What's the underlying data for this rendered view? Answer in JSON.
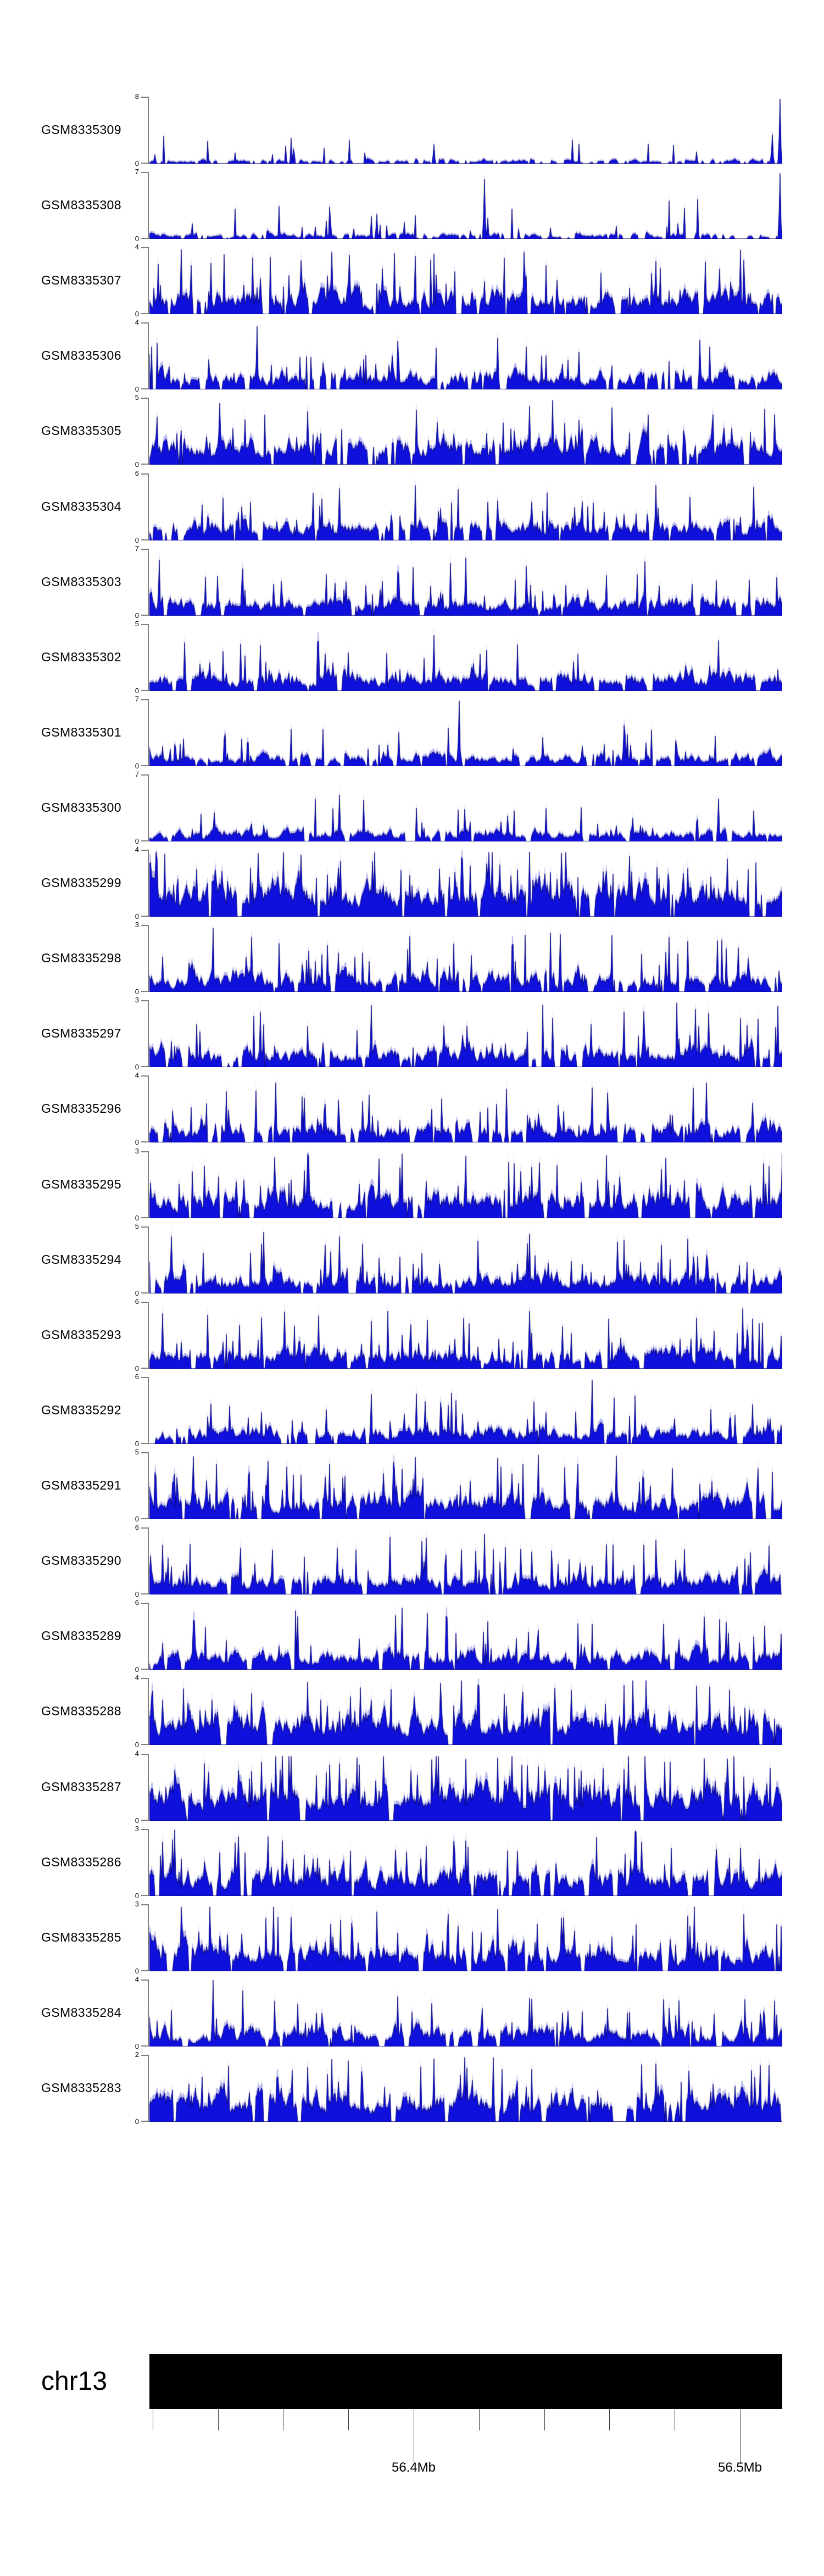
{
  "page": {
    "background": "#ffffff"
  },
  "colors": {
    "signal_fill": "#1010dc",
    "signal_stroke": "#00007d",
    "signal_halo": "rgba(125,125,222,0.55)",
    "axis_bracket": "#7f7f7f",
    "ideogram_fill": "#000000",
    "ruler_tick": "#3c3c3c",
    "text": "#000000"
  },
  "ideogram": {
    "chromosome_label": "chr13"
  },
  "chart_data": {
    "type": "area",
    "title": "",
    "description": "Genome browser style coverage signal tracks for 27 GEO samples over a region of chromosome 13",
    "grid": false,
    "legend": null,
    "x_axis": {
      "region_chromosome": "chr13",
      "region_start_mb": 56.319,
      "region_end_mb": 56.513,
      "minor_ticks_mb": [
        56.32,
        56.34,
        56.36,
        56.38,
        56.4,
        56.42,
        56.44,
        56.46,
        56.48,
        56.5
      ],
      "labeled_ticks": [
        {
          "mb": 56.4,
          "label": "56.4Mb"
        },
        {
          "mb": 56.5,
          "label": "56.5Mb"
        }
      ]
    },
    "y_axis": {
      "min_label": "0"
    },
    "tracks": [
      {
        "label": "GSM8335309",
        "ymax": 8,
        "ymin": 0,
        "seed": 101,
        "base": 0.5,
        "floor": 0.06,
        "spread": 2.0,
        "gap": 0.1,
        "needle_prob": 0.05,
        "needle": 1.3,
        "features": [
          [
            0.45,
            2.3
          ],
          [
            0.985,
            3.5
          ],
          [
            0.997,
            7.8
          ]
        ]
      },
      {
        "label": "GSM8335308",
        "ymax": 7,
        "ymin": 0,
        "seed": 102,
        "base": 0.55,
        "floor": 0.06,
        "spread": 2.0,
        "gap": 0.08,
        "needle_prob": 0.06,
        "needle": 1.4,
        "features": [
          [
            0.36,
            2.6
          ],
          [
            0.53,
            6.3
          ],
          [
            0.997,
            6.9
          ]
        ]
      },
      {
        "label": "GSM8335307",
        "ymax": 4,
        "ymin": 0,
        "seed": 103,
        "base": 1.15,
        "floor": 0.15,
        "spread": 2.2,
        "gap": 0.04,
        "needle_prob": 0.1,
        "needle": 1.1,
        "features": [
          [
            0.05,
            3.9
          ],
          [
            0.42,
            3.5
          ],
          [
            0.8,
            3.2
          ]
        ]
      },
      {
        "label": "GSM8335306",
        "ymax": 4,
        "ymin": 0,
        "seed": 104,
        "base": 0.95,
        "floor": 0.1,
        "spread": 2.2,
        "gap": 0.05,
        "needle_prob": 0.07,
        "needle": 1.0,
        "features": [
          [
            0.17,
            3.8
          ],
          [
            0.55,
            3.1
          ]
        ]
      },
      {
        "label": "GSM8335305",
        "ymax": 5,
        "ymin": 0,
        "seed": 105,
        "base": 1.5,
        "floor": 0.22,
        "spread": 2.2,
        "gap": 0.03,
        "needle_prob": 0.1,
        "needle": 1.2,
        "features": [
          [
            0.25,
            4.0
          ],
          [
            0.6,
            4.4
          ]
        ]
      },
      {
        "label": "GSM8335304",
        "ymax": 6,
        "ymin": 0,
        "seed": 106,
        "base": 1.4,
        "floor": 0.2,
        "spread": 2.2,
        "gap": 0.03,
        "needle_prob": 0.09,
        "needle": 1.4,
        "features": [
          [
            0.3,
            4.7
          ],
          [
            0.8,
            5.0
          ]
        ]
      },
      {
        "label": "GSM8335303",
        "ymax": 7,
        "ymin": 0,
        "seed": 107,
        "base": 1.4,
        "floor": 0.18,
        "spread": 2.2,
        "gap": 0.03,
        "needle_prob": 0.08,
        "needle": 1.6,
        "features": [
          [
            0.015,
            5.9
          ],
          [
            0.5,
            6.1
          ]
        ]
      },
      {
        "label": "GSM8335302",
        "ymax": 5,
        "ymin": 0,
        "seed": 108,
        "base": 1.1,
        "floor": 0.15,
        "spread": 2.2,
        "gap": 0.04,
        "needle_prob": 0.08,
        "needle": 1.2,
        "features": [
          [
            0.45,
            4.2
          ],
          [
            0.9,
            3.8
          ]
        ]
      },
      {
        "label": "GSM8335301",
        "ymax": 7,
        "ymin": 0,
        "seed": 109,
        "base": 1.0,
        "floor": 0.12,
        "spread": 2.2,
        "gap": 0.04,
        "needle_prob": 0.07,
        "needle": 1.5,
        "features": [
          [
            0.49,
            6.9
          ],
          [
            0.75,
            4.3
          ]
        ]
      },
      {
        "label": "GSM8335300",
        "ymax": 7,
        "ymin": 0,
        "seed": 110,
        "base": 1.0,
        "floor": 0.12,
        "spread": 2.2,
        "gap": 0.04,
        "needle_prob": 0.07,
        "needle": 1.5,
        "features": [
          [
            0.3,
            4.9
          ],
          [
            0.9,
            4.5
          ]
        ]
      },
      {
        "label": "GSM8335299",
        "ymax": 4,
        "ymin": 0,
        "seed": 111,
        "base": 1.45,
        "floor": 0.25,
        "spread": 2.2,
        "gap": 0.02,
        "needle_prob": 0.12,
        "needle": 1.1,
        "features": [
          [
            0.6,
            3.9
          ]
        ]
      },
      {
        "label": "GSM8335298",
        "ymax": 3,
        "ymin": 0,
        "seed": 112,
        "base": 0.75,
        "floor": 0.1,
        "spread": 2.2,
        "gap": 0.05,
        "needle_prob": 0.08,
        "needle": 0.8,
        "features": [
          [
            0.1,
            2.9
          ],
          [
            0.65,
            2.6
          ]
        ]
      },
      {
        "label": "GSM8335297",
        "ymax": 3,
        "ymin": 0,
        "seed": 113,
        "base": 0.75,
        "floor": 0.1,
        "spread": 2.2,
        "gap": 0.05,
        "needle_prob": 0.08,
        "needle": 0.8,
        "features": [
          [
            0.35,
            2.8
          ],
          [
            0.75,
            2.5
          ]
        ]
      },
      {
        "label": "GSM8335296",
        "ymax": 4,
        "ymin": 0,
        "seed": 114,
        "base": 0.95,
        "floor": 0.1,
        "spread": 2.2,
        "gap": 0.05,
        "needle_prob": 0.08,
        "needle": 1.0,
        "features": [
          [
            0.2,
            3.6
          ],
          [
            0.7,
            3.3
          ]
        ]
      },
      {
        "label": "GSM8335295",
        "ymax": 3,
        "ymin": 0,
        "seed": 115,
        "base": 0.95,
        "floor": 0.15,
        "spread": 2.2,
        "gap": 0.03,
        "needle_prob": 0.1,
        "needle": 0.8,
        "features": [
          [
            0.5,
            2.8
          ]
        ]
      },
      {
        "label": "GSM8335294",
        "ymax": 5,
        "ymin": 0,
        "seed": 116,
        "base": 1.15,
        "floor": 0.15,
        "spread": 2.2,
        "gap": 0.03,
        "needle_prob": 0.09,
        "needle": 1.2,
        "features": [
          [
            0.3,
            4.3
          ],
          [
            0.85,
            4.1
          ]
        ]
      },
      {
        "label": "GSM8335293",
        "ymax": 6,
        "ymin": 0,
        "seed": 117,
        "base": 1.35,
        "floor": 0.18,
        "spread": 2.2,
        "gap": 0.03,
        "needle_prob": 0.09,
        "needle": 1.5,
        "features": [
          [
            0.02,
            5.0
          ],
          [
            0.6,
            5.2
          ]
        ]
      },
      {
        "label": "GSM8335292",
        "ymax": 6,
        "ymin": 0,
        "seed": 118,
        "base": 1.15,
        "floor": 0.15,
        "spread": 2.2,
        "gap": 0.03,
        "needle_prob": 0.08,
        "needle": 1.4,
        "features": [
          [
            0.35,
            4.5
          ],
          [
            0.7,
            5.8
          ]
        ]
      },
      {
        "label": "GSM8335291",
        "ymax": 5,
        "ymin": 0,
        "seed": 119,
        "base": 1.45,
        "floor": 0.22,
        "spread": 2.2,
        "gap": 0.02,
        "needle_prob": 0.11,
        "needle": 1.2,
        "features": [
          [
            0.55,
            4.6
          ]
        ]
      },
      {
        "label": "GSM8335290",
        "ymax": 6,
        "ymin": 0,
        "seed": 120,
        "base": 1.4,
        "floor": 0.2,
        "spread": 2.2,
        "gap": 0.03,
        "needle_prob": 0.1,
        "needle": 1.4,
        "features": [
          [
            0.38,
            5.2
          ],
          [
            0.43,
            4.8
          ],
          [
            0.98,
            4.4
          ]
        ]
      },
      {
        "label": "GSM8335289",
        "ymax": 6,
        "ymin": 0,
        "seed": 121,
        "base": 1.4,
        "floor": 0.2,
        "spread": 2.2,
        "gap": 0.03,
        "needle_prob": 0.09,
        "needle": 1.5,
        "features": [
          [
            0.4,
            5.6
          ],
          [
            0.44,
            5.1
          ],
          [
            0.47,
            4.7
          ]
        ]
      },
      {
        "label": "GSM8335288",
        "ymax": 4,
        "ymin": 0,
        "seed": 122,
        "base": 1.5,
        "floor": 0.25,
        "spread": 2.2,
        "gap": 0.02,
        "needle_prob": 0.12,
        "needle": 1.0,
        "features": [
          [
            0.25,
            3.8
          ],
          [
            0.75,
            3.6
          ]
        ]
      },
      {
        "label": "GSM8335287",
        "ymax": 4,
        "ymin": 0,
        "seed": 123,
        "base": 1.6,
        "floor": 0.28,
        "spread": 2.2,
        "gap": 0.02,
        "needle_prob": 0.12,
        "needle": 1.0,
        "features": [
          [
            0.21,
            3.9
          ],
          [
            0.55,
            3.8
          ]
        ]
      },
      {
        "label": "GSM8335286",
        "ymax": 3,
        "ymin": 0,
        "seed": 124,
        "base": 1.0,
        "floor": 0.15,
        "spread": 2.2,
        "gap": 0.03,
        "needle_prob": 0.09,
        "needle": 0.8,
        "features": [
          [
            0.04,
            3.0
          ],
          [
            0.5,
            2.5
          ]
        ]
      },
      {
        "label": "GSM8335285",
        "ymax": 3,
        "ymin": 0,
        "seed": 125,
        "base": 1.0,
        "floor": 0.15,
        "spread": 2.2,
        "gap": 0.03,
        "needle_prob": 0.09,
        "needle": 0.8,
        "features": [
          [
            0.55,
            2.8
          ],
          [
            0.85,
            2.5
          ]
        ]
      },
      {
        "label": "GSM8335284",
        "ymax": 4,
        "ymin": 0,
        "seed": 126,
        "base": 1.0,
        "floor": 0.12,
        "spread": 2.2,
        "gap": 0.04,
        "needle_prob": 0.08,
        "needle": 0.9,
        "features": [
          [
            0.1,
            4.0
          ],
          [
            0.6,
            2.9
          ]
        ]
      },
      {
        "label": "GSM8335283",
        "ymax": 2,
        "ymin": 0,
        "seed": 127,
        "base": 0.75,
        "floor": 0.18,
        "spread": 2.2,
        "gap": 0.03,
        "needle_prob": 0.1,
        "needle": 0.5,
        "features": [
          [
            0.45,
            1.9
          ],
          [
            0.8,
            1.75
          ]
        ]
      }
    ]
  }
}
